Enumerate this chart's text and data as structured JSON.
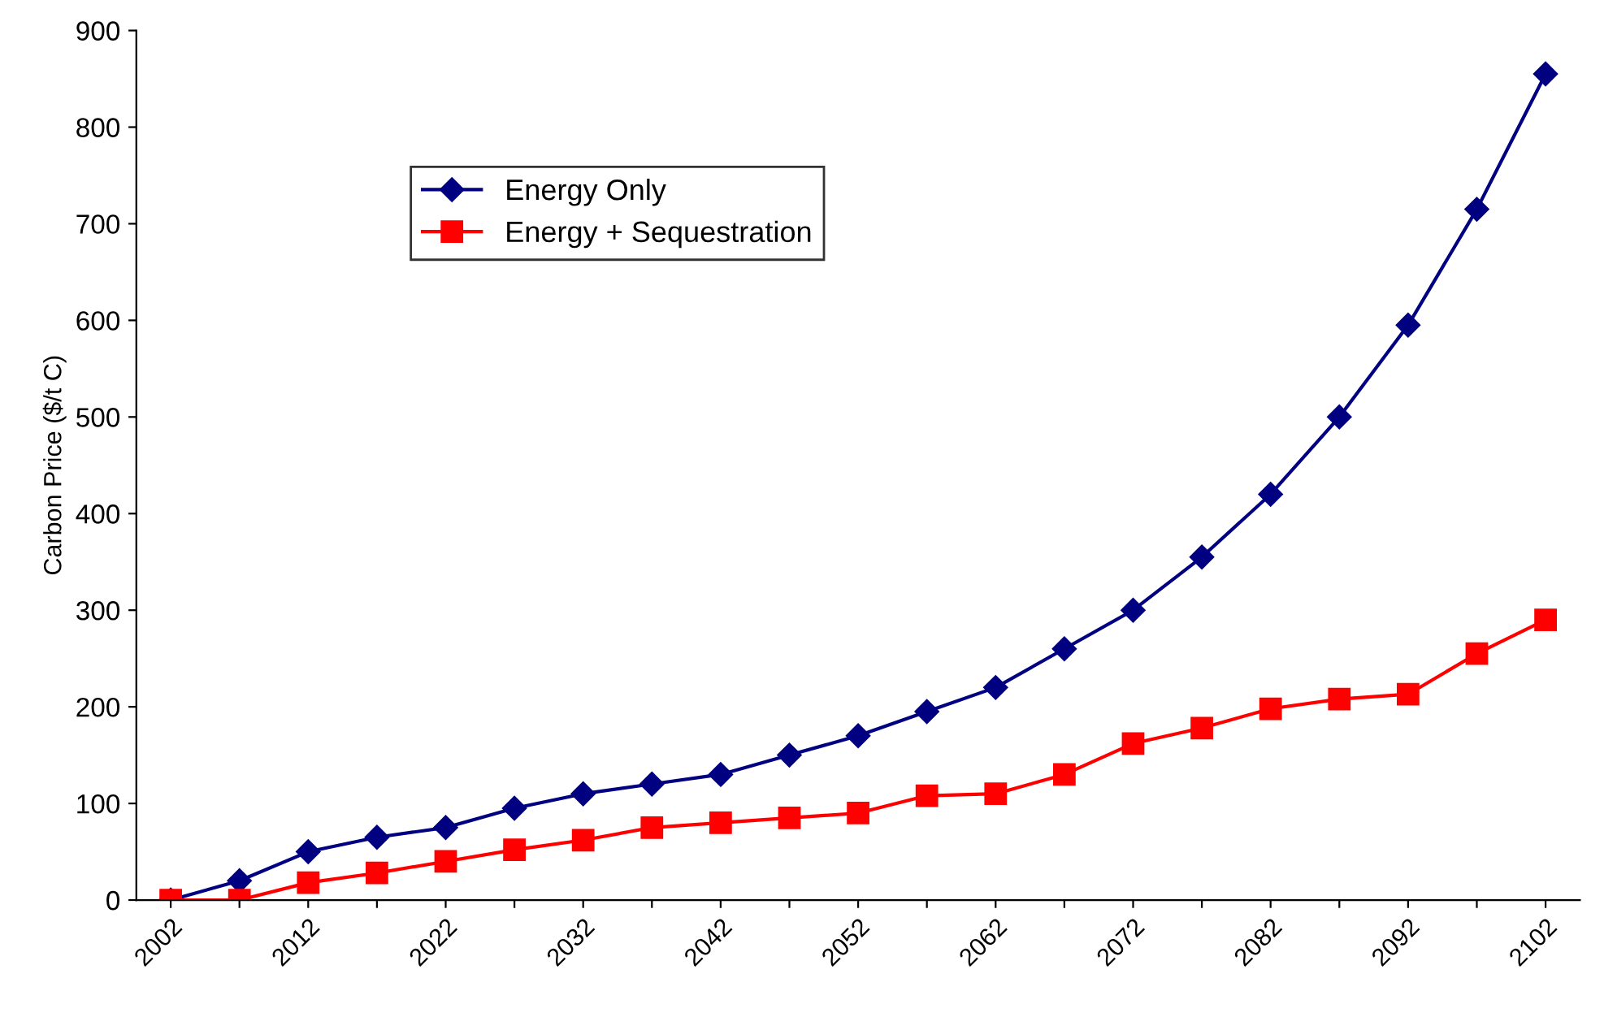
{
  "chart_data": {
    "type": "line",
    "ylabel": "Carbon Price ($/t C)",
    "categories": [
      "2002",
      null,
      "2012",
      null,
      "2022",
      null,
      "2032",
      null,
      "2042",
      null,
      "2052",
      null,
      "2062",
      null,
      "2072",
      null,
      "2082",
      null,
      "2092",
      null,
      "2102"
    ],
    "series": [
      {
        "name": "Energy Only",
        "color": "#000080",
        "marker": "diamond",
        "values": [
          0,
          20,
          50,
          65,
          75,
          95,
          110,
          120,
          130,
          150,
          170,
          195,
          220,
          260,
          300,
          355,
          420,
          500,
          595,
          715,
          855
        ]
      },
      {
        "name": "Energy + Sequestration",
        "color": "#ff0000",
        "marker": "square",
        "values": [
          0,
          0,
          18,
          28,
          40,
          52,
          62,
          75,
          80,
          85,
          90,
          108,
          110,
          130,
          162,
          178,
          198,
          208,
          213,
          255,
          290
        ]
      }
    ],
    "ylim": [
      0,
      900
    ],
    "yticks": [
      0,
      100,
      200,
      300,
      400,
      500,
      600,
      700,
      800,
      900
    ],
    "grid": false,
    "legend": "top left",
    "line_style": "solid"
  }
}
